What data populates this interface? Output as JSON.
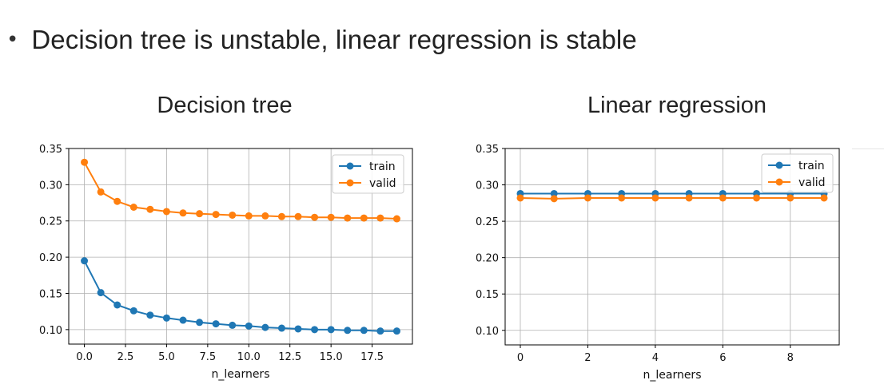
{
  "slide": {
    "bullet": "Decision tree is unstable, linear regression is stable"
  },
  "colors": {
    "train": "#1f77b4",
    "valid": "#ff7f0e",
    "grid": "#b0b0b0"
  },
  "chart_data": [
    {
      "type": "line",
      "title": "Decision tree",
      "xlabel": "n_learners",
      "ylabel": "",
      "xlim": [
        -0.95,
        19.95
      ],
      "ylim": [
        0.08,
        0.35
      ],
      "xticks": [
        0,
        2.5,
        5,
        7.5,
        10,
        12.5,
        15,
        17.5
      ],
      "xtick_labels": [
        "0.0",
        "2.5",
        "5.0",
        "7.5",
        "10.0",
        "12.5",
        "15.0",
        "17.5"
      ],
      "yticks": [
        0.1,
        0.15,
        0.2,
        0.25,
        0.3,
        0.35
      ],
      "ytick_labels": [
        "0.10",
        "0.15",
        "0.20",
        "0.25",
        "0.30",
        "0.35"
      ],
      "grid": true,
      "legend": "top-right",
      "x": [
        0,
        1,
        2,
        3,
        4,
        5,
        6,
        7,
        8,
        9,
        10,
        11,
        12,
        13,
        14,
        15,
        16,
        17,
        18,
        19
      ],
      "series": [
        {
          "name": "train",
          "values": [
            0.195,
            0.151,
            0.134,
            0.126,
            0.12,
            0.116,
            0.113,
            0.11,
            0.108,
            0.106,
            0.105,
            0.103,
            0.102,
            0.101,
            0.1,
            0.1,
            0.099,
            0.099,
            0.098,
            0.098
          ]
        },
        {
          "name": "valid",
          "values": [
            0.331,
            0.29,
            0.277,
            0.269,
            0.266,
            0.263,
            0.261,
            0.26,
            0.259,
            0.258,
            0.257,
            0.257,
            0.256,
            0.256,
            0.255,
            0.255,
            0.254,
            0.254,
            0.254,
            0.253
          ]
        }
      ]
    },
    {
      "type": "line",
      "title": "Linear regression",
      "xlabel": "n_learners",
      "ylabel": "",
      "xlim": [
        -0.45,
        9.45
      ],
      "ylim": [
        0.08,
        0.35
      ],
      "xticks": [
        0,
        2,
        4,
        6,
        8
      ],
      "xtick_labels": [
        "0",
        "2",
        "4",
        "6",
        "8"
      ],
      "yticks": [
        0.1,
        0.15,
        0.2,
        0.25,
        0.3,
        0.35
      ],
      "ytick_labels": [
        "0.10",
        "0.15",
        "0.20",
        "0.25",
        "0.30",
        "0.35"
      ],
      "grid": true,
      "legend": "top-right",
      "x": [
        0,
        1,
        2,
        3,
        4,
        5,
        6,
        7,
        8,
        9
      ],
      "series": [
        {
          "name": "train",
          "values": [
            0.288,
            0.288,
            0.288,
            0.288,
            0.288,
            0.288,
            0.288,
            0.288,
            0.288,
            0.288
          ]
        },
        {
          "name": "valid",
          "values": [
            0.282,
            0.281,
            0.282,
            0.282,
            0.282,
            0.282,
            0.282,
            0.282,
            0.282,
            0.282
          ]
        }
      ]
    }
  ]
}
